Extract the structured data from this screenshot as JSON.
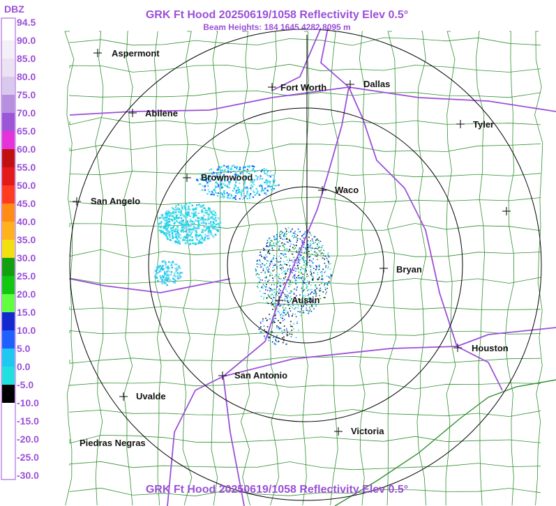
{
  "header": {
    "title": "GRK Ft Hood 20250619/1058 Reflectivity Elev 0.5°",
    "subtitle": "Beam Heights: 184 1645 4282 8095 m",
    "footer_title": "GRK Ft Hood 20250619/1058 Reflectivity Elev 0.5°"
  },
  "legend": {
    "unit": "DBZ",
    "scale": [
      {
        "label": "94.5",
        "color": "#ffffff"
      },
      {
        "label": "90.0",
        "color": "#f4f0f8"
      },
      {
        "label": "85.0",
        "color": "#ebe3f3"
      },
      {
        "label": "80.0",
        "color": "#d9c9ec"
      },
      {
        "label": "75.0",
        "color": "#b68fdf"
      },
      {
        "label": "70.0",
        "color": "#9b55d6"
      },
      {
        "label": "65.0",
        "color": "#e632d9"
      },
      {
        "label": "60.0",
        "color": "#c01010"
      },
      {
        "label": "55.0",
        "color": "#e31a1a"
      },
      {
        "label": "50.0",
        "color": "#ff3c1e"
      },
      {
        "label": "45.0",
        "color": "#ff8c14"
      },
      {
        "label": "40.0",
        "color": "#ffb21e"
      },
      {
        "label": "35.0",
        "color": "#f0e010"
      },
      {
        "label": "30.0",
        "color": "#10a010"
      },
      {
        "label": "25.0",
        "color": "#10c810"
      },
      {
        "label": "20.0",
        "color": "#60ff40"
      },
      {
        "label": "15.0",
        "color": "#1428d0"
      },
      {
        "label": "10.0",
        "color": "#2060ff"
      },
      {
        "label": "5.0",
        "color": "#1ec8f0"
      },
      {
        "label": "0.0",
        "color": "#20e0e0"
      },
      {
        "label": "-5.0",
        "color": "#000000"
      },
      {
        "label": "-10.0",
        "color": "#ffffff"
      },
      {
        "label": "-15.0",
        "color": "#ffffff"
      },
      {
        "label": "-20.0",
        "color": "#ffffff"
      },
      {
        "label": "-25.0",
        "color": "#ffffff"
      },
      {
        "label": "-30.0",
        "color": "#ffffff"
      }
    ]
  },
  "cities": [
    "Aspermont",
    "Fort Worth",
    "Dallas",
    "Abilene",
    "Tyler",
    "Brownwood",
    "Waco",
    "San Angelo",
    "Bryan",
    "Austin",
    "Houston",
    "San Antonio",
    "Uvalde",
    "Victoria",
    "Piedras Negras"
  ]
}
